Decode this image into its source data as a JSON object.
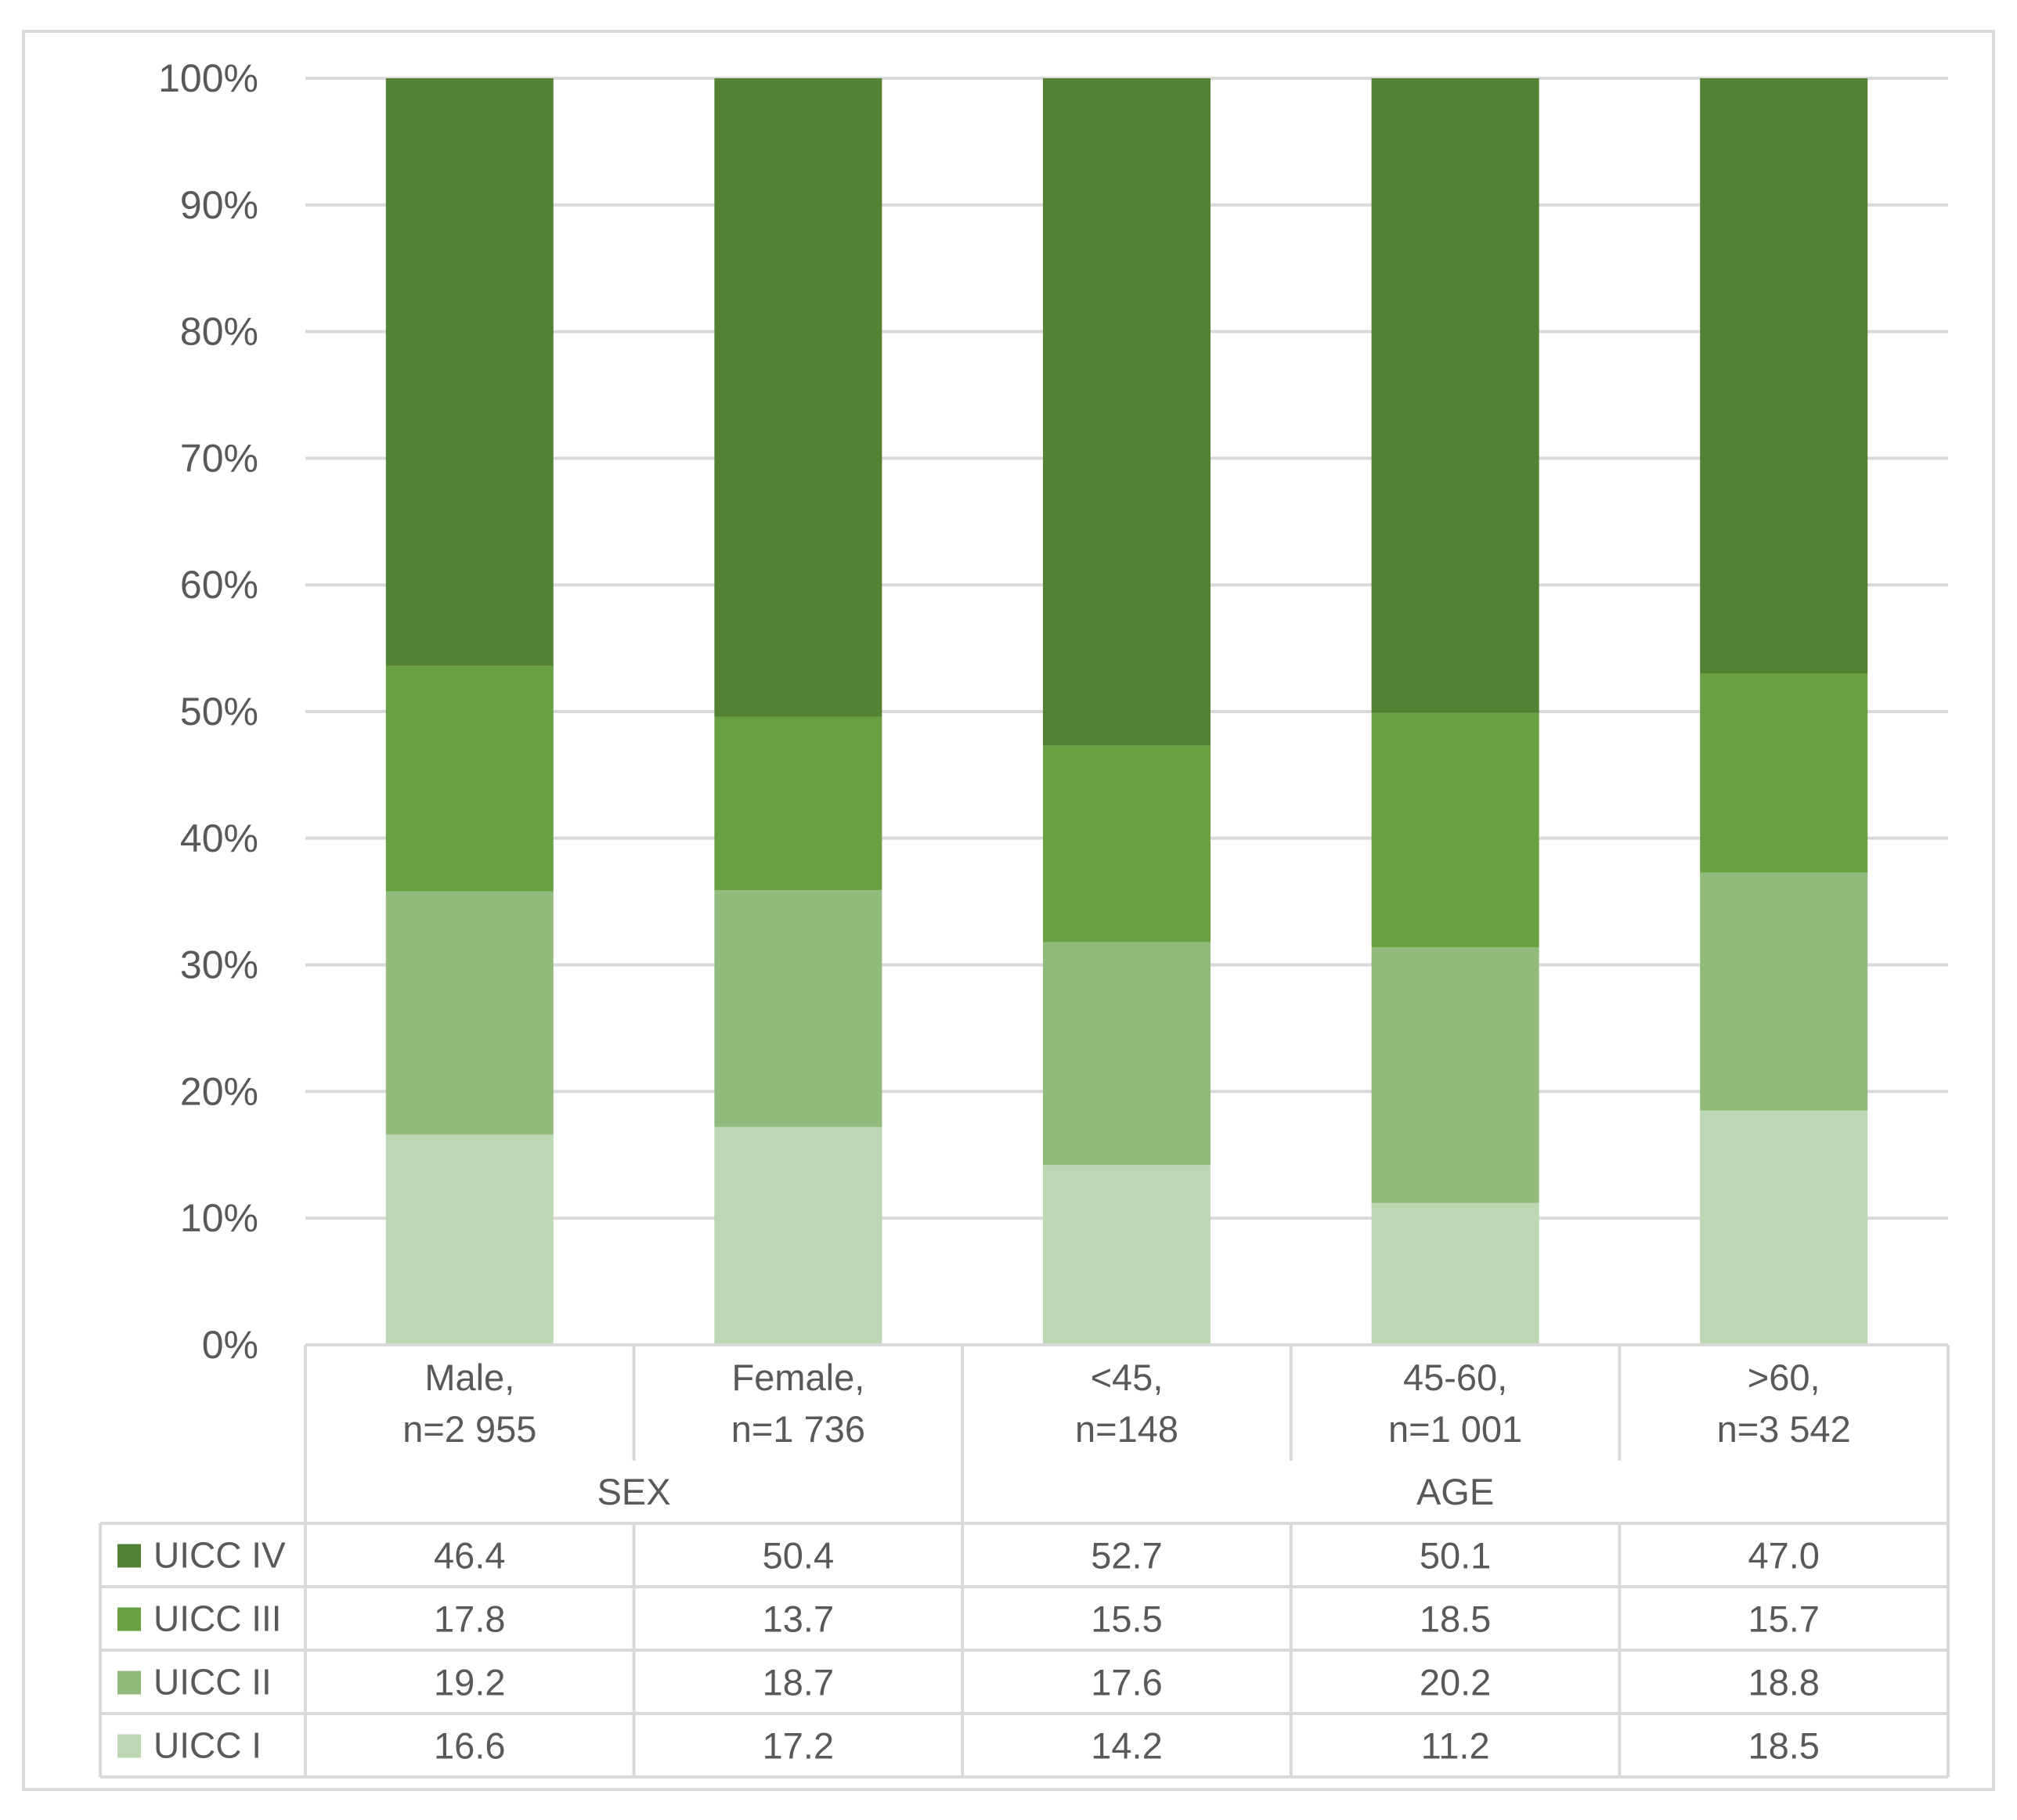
{
  "chart_data": {
    "type": "bar",
    "stacked": true,
    "categories": [
      "Male,\nn=2 955",
      "Female,\nn=1 736",
      "<45,\nn=148",
      "45-60,\nn=1 001",
      ">60,\nn=3 542"
    ],
    "groups": [
      {
        "label": "SEX",
        "span": 2
      },
      {
        "label": "AGE",
        "span": 3
      }
    ],
    "ylim": [
      0,
      100
    ],
    "yticks": [
      "0%",
      "10%",
      "20%",
      "30%",
      "40%",
      "50%",
      "60%",
      "70%",
      "80%",
      "90%",
      "100%"
    ],
    "grid": true,
    "series": [
      {
        "name": "UICC I",
        "color": "#bdd6b4",
        "values": [
          16.6,
          17.2,
          14.2,
          11.2,
          18.5
        ],
        "labels": [
          "16.6",
          "17.2",
          "14.2",
          "11.2",
          "18.5"
        ]
      },
      {
        "name": "UICC II",
        "color": "#92ba7c",
        "values": [
          19.2,
          18.7,
          17.6,
          20.2,
          18.8
        ],
        "labels": [
          "19.2",
          "18.7",
          "17.6",
          "20.2",
          "18.8"
        ]
      },
      {
        "name": "UICC III",
        "color": "#68a042",
        "values": [
          17.8,
          13.7,
          15.5,
          18.5,
          15.7
        ],
        "labels": [
          "17.8",
          "13.7",
          "15.5",
          "18.5",
          "15.7"
        ]
      },
      {
        "name": "UICC IV",
        "color": "#548235",
        "values": [
          46.4,
          50.4,
          52.7,
          50.1,
          47.0
        ],
        "labels": [
          "46.4",
          "50.4",
          "52.7",
          "50.1",
          "47.0"
        ]
      }
    ],
    "table_rows_order": [
      "UICC IV",
      "UICC III",
      "UICC II",
      "UICC I"
    ],
    "legend": "data-table"
  }
}
